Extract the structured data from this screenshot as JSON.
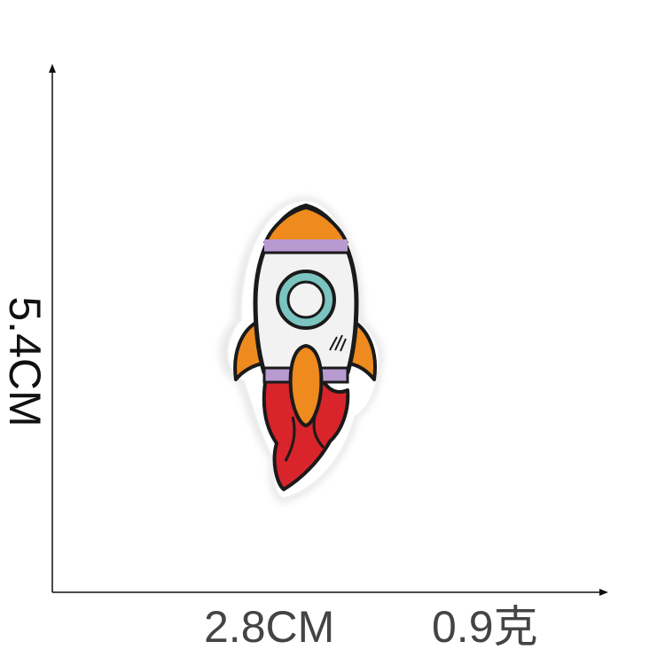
{
  "dimensions": {
    "height": "5.4CM",
    "width": "2.8CM",
    "weight": "0.9克"
  },
  "patch": {
    "icon": "rocket-icon",
    "colors": {
      "outline": "#1a1a1a",
      "body": "#f2f2f2",
      "nose": "#ee8a1e",
      "band": "#b79ad0",
      "window_ring": "#7bc4c0",
      "fins": "#ee8a1e",
      "flame": "#d8242a",
      "border": "#ffffff"
    }
  }
}
